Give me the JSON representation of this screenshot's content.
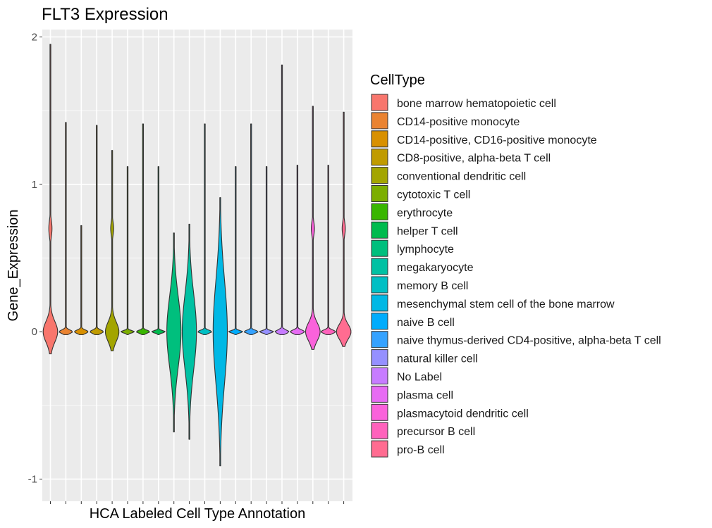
{
  "chart_data": {
    "type": "violin",
    "title": "FLT3 Expression",
    "xlabel": "HCA Labeled Cell Type Annotation",
    "ylabel": "Gene_Expression",
    "ylim": [
      -1,
      2
    ],
    "yticks": [
      -1,
      0,
      1,
      2
    ],
    "grid": true,
    "legend_position": "right",
    "legend_title": "CellType",
    "series": [
      {
        "name": "bone marrow hematopoietic cell",
        "color": "#F8766D",
        "min": -0.15,
        "max": 1.95,
        "half_width": 0.45,
        "spread": 0.07,
        "shape": "peak",
        "bulge_center": 0.7,
        "bulge_width": 0.12
      },
      {
        "name": "CD14-positive monocyte",
        "color": "#EA8331",
        "min": -0.02,
        "max": 1.42,
        "half_width": 0.42,
        "spread": 0.012,
        "shape": "peak"
      },
      {
        "name": "CD14-positive, CD16-positive monocyte",
        "color": "#D89000",
        "min": -0.02,
        "max": 0.72,
        "half_width": 0.42,
        "spread": 0.012,
        "shape": "peak"
      },
      {
        "name": "CD8-positive, alpha-beta T cell",
        "color": "#C09B00",
        "min": -0.02,
        "max": 1.4,
        "half_width": 0.42,
        "spread": 0.012,
        "shape": "peak"
      },
      {
        "name": "conventional dendritic cell",
        "color": "#A3A500",
        "min": -0.13,
        "max": 1.23,
        "half_width": 0.42,
        "spread": 0.065,
        "shape": "peak",
        "bulge_center": 0.7,
        "bulge_width": 0.1
      },
      {
        "name": "cytotoxic T cell",
        "color": "#7CAE00",
        "min": -0.02,
        "max": 1.12,
        "half_width": 0.42,
        "spread": 0.008,
        "shape": "peak"
      },
      {
        "name": "erythrocyte",
        "color": "#39B600",
        "min": -0.02,
        "max": 1.41,
        "half_width": 0.42,
        "spread": 0.01,
        "shape": "peak"
      },
      {
        "name": "helper T cell",
        "color": "#00BB4E",
        "min": -0.02,
        "max": 1.12,
        "half_width": 0.42,
        "spread": 0.008,
        "shape": "peak"
      },
      {
        "name": "lymphocyte",
        "color": "#00BF7D",
        "min": -0.68,
        "max": 0.67,
        "half_width": 0.44,
        "spread": 0.24,
        "shape": "broad"
      },
      {
        "name": "megakaryocyte",
        "color": "#00C1A3",
        "min": -0.73,
        "max": 0.73,
        "half_width": 0.44,
        "spread": 0.26,
        "shape": "broad"
      },
      {
        "name": "memory B cell",
        "color": "#00BFC4",
        "min": -0.02,
        "max": 1.41,
        "half_width": 0.44,
        "spread": 0.01,
        "shape": "peak"
      },
      {
        "name": "mesenchymal stem cell of the bone marrow",
        "color": "#00B8E5",
        "min": -0.91,
        "max": 0.91,
        "half_width": 0.44,
        "spread": 0.35,
        "shape": "broad"
      },
      {
        "name": "naive B cell",
        "color": "#00ACFC",
        "min": -0.02,
        "max": 1.12,
        "half_width": 0.44,
        "spread": 0.008,
        "shape": "peak"
      },
      {
        "name": "naive thymus-derived CD4-positive, alpha-beta T cell",
        "color": "#35A2FF",
        "min": -0.02,
        "max": 1.41,
        "half_width": 0.44,
        "spread": 0.01,
        "shape": "peak"
      },
      {
        "name": "natural killer cell",
        "color": "#9590FF",
        "min": -0.02,
        "max": 1.12,
        "half_width": 0.44,
        "spread": 0.008,
        "shape": "peak"
      },
      {
        "name": "No Label",
        "color": "#C77CFF",
        "min": -0.02,
        "max": 1.81,
        "half_width": 0.44,
        "spread": 0.012,
        "shape": "peak"
      },
      {
        "name": "plasma cell",
        "color": "#E76BF3",
        "min": -0.02,
        "max": 1.13,
        "half_width": 0.44,
        "spread": 0.012,
        "shape": "peak"
      },
      {
        "name": "plasmacytoid dendritic cell",
        "color": "#FA62DB",
        "min": -0.12,
        "max": 1.53,
        "half_width": 0.45,
        "spread": 0.06,
        "shape": "peak",
        "bulge_center": 0.7,
        "bulge_width": 0.1
      },
      {
        "name": "precursor B cell",
        "color": "#FF62BC",
        "min": -0.02,
        "max": 1.13,
        "half_width": 0.45,
        "spread": 0.012,
        "shape": "peak"
      },
      {
        "name": "pro-B cell",
        "color": "#FF6C91",
        "min": -0.1,
        "max": 1.49,
        "half_width": 0.45,
        "spread": 0.05,
        "shape": "peak",
        "bulge_center": 0.7,
        "bulge_width": 0.1
      }
    ]
  }
}
